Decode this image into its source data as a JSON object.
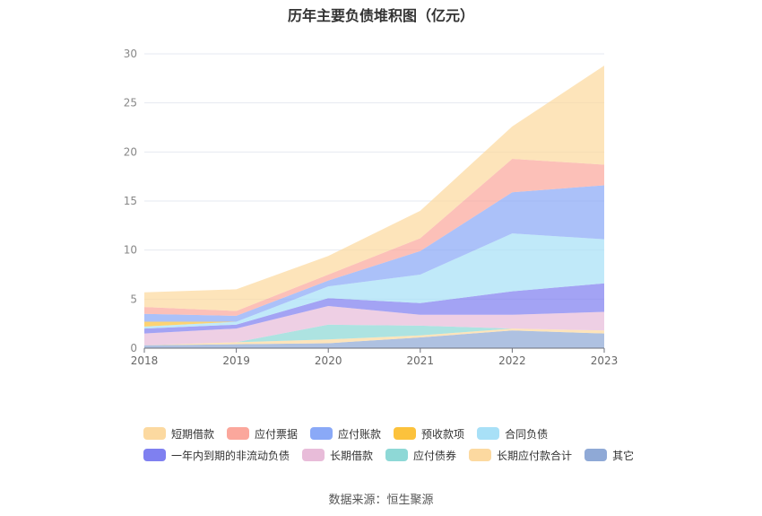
{
  "title": "历年主要负债堆积图（亿元）",
  "source": "数据来源：恒生聚源",
  "chart_data": {
    "type": "area",
    "stacked": true,
    "x": [
      "2018",
      "2019",
      "2020",
      "2021",
      "2022",
      "2023"
    ],
    "ylim": [
      0,
      30
    ],
    "yticks": [
      0,
      5,
      10,
      15,
      20,
      25,
      30
    ],
    "grid": true,
    "legend_position": "bottom",
    "series": [
      {
        "name": "其它",
        "color": "#8fa9d6",
        "values": [
          0.3,
          0.4,
          0.5,
          1.1,
          1.8,
          1.5
        ]
      },
      {
        "name": "长期应付款合计",
        "color": "#fcd9a0",
        "values": [
          0.0,
          0.2,
          0.4,
          0.2,
          0.2,
          0.3
        ]
      },
      {
        "name": "应付债券",
        "color": "#8ed8d6",
        "values": [
          0.0,
          0.0,
          1.5,
          1.0,
          0.0,
          0.0
        ]
      },
      {
        "name": "长期借款",
        "color": "#e8bcd9",
        "values": [
          1.2,
          1.4,
          1.9,
          1.1,
          1.4,
          1.9
        ]
      },
      {
        "name": "一年内到期的非流动负债",
        "color": "#7f80f0",
        "values": [
          0.5,
          0.4,
          0.8,
          1.2,
          2.4,
          2.9
        ]
      },
      {
        "name": "合同负债",
        "color": "#a8e0f7",
        "values": [
          0.2,
          0.3,
          1.2,
          2.9,
          5.9,
          4.5
        ]
      },
      {
        "name": "预收款项",
        "color": "#fcc23c",
        "values": [
          0.5,
          0.0,
          0.0,
          0.0,
          0.0,
          0.0
        ]
      },
      {
        "name": "应付账款",
        "color": "#8aa9f7",
        "values": [
          0.8,
          0.6,
          0.6,
          2.4,
          4.2,
          5.5
        ]
      },
      {
        "name": "应付票据",
        "color": "#fba79c",
        "values": [
          0.7,
          0.5,
          0.6,
          1.3,
          3.4,
          2.1
        ]
      },
      {
        "name": "短期借款",
        "color": "#fcd9a0",
        "values": [
          1.5,
          2.2,
          1.9,
          2.8,
          3.3,
          10.1
        ]
      }
    ],
    "legend_order": [
      "短期借款",
      "应付票据",
      "应付账款",
      "预收款项",
      "合同负债",
      "一年内到期的非流动负债",
      "长期借款",
      "应付债券",
      "长期应付款合计",
      "其它"
    ]
  }
}
